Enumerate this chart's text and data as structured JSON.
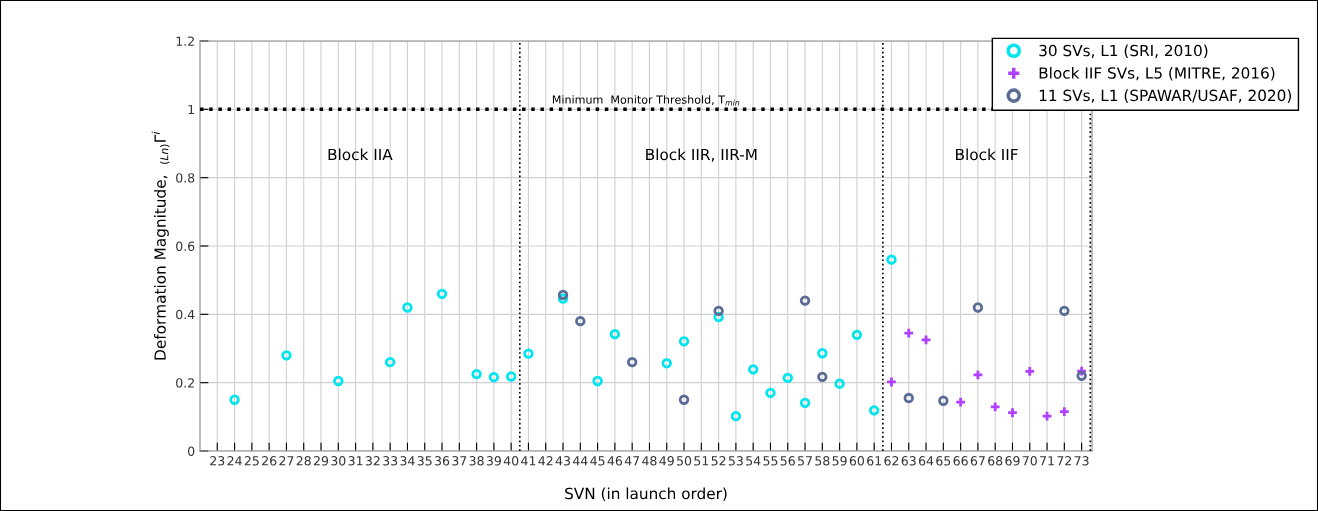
{
  "chart_data": {
    "type": "scatter",
    "xlabel": "SVN (in launch order)",
    "ylabel": "Deformation Magnitude,  $_{(Ln)}$Γ$^{i}$",
    "series": [
      {
        "name": "30 SVs, L1 (SRI, 2010)",
        "color": "#00e5ee",
        "marker": "circle",
        "x": [
          24,
          27,
          30,
          33,
          34,
          36,
          38,
          39,
          40,
          41,
          43,
          45,
          46,
          49,
          50,
          52,
          53,
          54,
          55,
          56,
          57,
          58,
          59,
          60,
          61,
          62
        ],
        "values": [
          0.15,
          0.28,
          0.205,
          0.26,
          0.42,
          0.46,
          0.225,
          0.216,
          0.218,
          0.285,
          0.446,
          0.205,
          0.342,
          0.257,
          0.321,
          0.392,
          0.102,
          0.239,
          0.17,
          0.214,
          0.141,
          0.286,
          0.197,
          0.34,
          0.119,
          0.56
        ]
      },
      {
        "name": "Block IIF SVs, L5 (MITRE, 2016)",
        "color": "#b040ff",
        "marker": "cross",
        "x": [
          62,
          63,
          64,
          66,
          67,
          68,
          69,
          70,
          71,
          72,
          73
        ],
        "values": [
          0.202,
          0.345,
          0.325,
          0.143,
          0.223,
          0.129,
          0.112,
          0.233,
          0.102,
          0.115,
          0.234
        ]
      },
      {
        "name": "11 SVs, L1 (SPAWAR/USAF, 2020)",
        "color": "#5a6b95",
        "marker": "circle",
        "x": [
          43,
          44,
          47,
          50,
          52,
          57,
          58,
          63,
          65,
          67,
          72,
          73
        ],
        "values": [
          0.457,
          0.38,
          0.26,
          0.15,
          0.41,
          0.44,
          0.217,
          0.155,
          0.147,
          0.42,
          0.41,
          0.22
        ]
      }
    ],
    "xlim": [
      22,
      73.6
    ],
    "xticks": [
      23,
      24,
      25,
      26,
      27,
      28,
      29,
      30,
      31,
      32,
      33,
      34,
      35,
      36,
      37,
      38,
      39,
      40,
      41,
      42,
      43,
      44,
      45,
      46,
      47,
      48,
      49,
      50,
      51,
      52,
      53,
      54,
      55,
      56,
      57,
      58,
      59,
      60,
      61,
      62,
      63,
      64,
      65,
      66,
      67,
      68,
      69,
      70,
      71,
      72,
      73
    ],
    "ylim": [
      0,
      1.2
    ],
    "yticks": [
      0,
      0.2,
      0.4,
      0.6,
      0.8,
      1,
      1.2
    ],
    "grid": true,
    "legend": "top right",
    "ref_lines": [
      {
        "axis": "y",
        "value": 1,
        "label": "Minimum  Monitor Threshold, T$_{min}$",
        "color": "#000000",
        "line_style": "dotted"
      },
      {
        "axis": "x",
        "value": 40.5,
        "color": "#000000",
        "line_style": "dotted"
      },
      {
        "axis": "x",
        "value": 61.5,
        "color": "#000000",
        "line_style": "dotted"
      },
      {
        "axis": "x",
        "value": 73.5,
        "color": "#000000",
        "line_style": "dotted"
      }
    ],
    "annotations": [
      "Block IIA",
      "Block IIR, IIR-M",
      "Block IIF"
    ]
  }
}
